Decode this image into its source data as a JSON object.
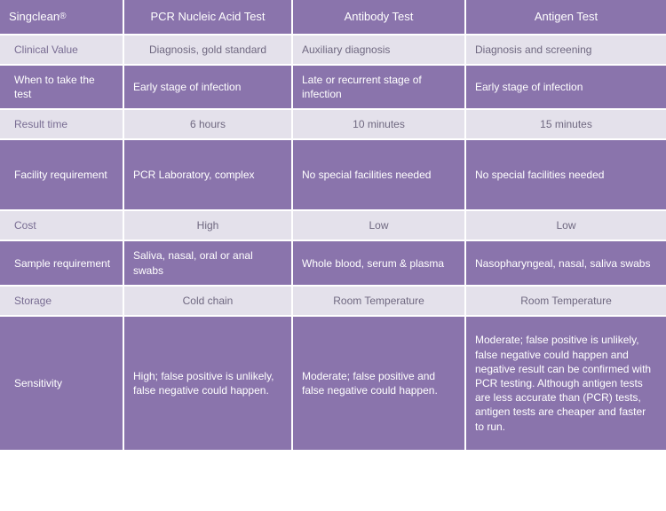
{
  "brand": {
    "name": "Singclean",
    "reg": "®"
  },
  "headers": {
    "col1": "PCR Nucleic Acid Test",
    "col2": "Antibody Test",
    "col3": "Antigen Test"
  },
  "rows": {
    "clinical_value": {
      "label": "Clinical Value",
      "c1": "Diagnosis, gold standard",
      "c2": "Auxiliary diagnosis",
      "c3": "Diagnosis and screening"
    },
    "when": {
      "label": "When to take the test",
      "c1": "Early stage of infection",
      "c2": "Late or recurrent stage of infection",
      "c3": "Early stage of infection"
    },
    "result_time": {
      "label": "Result time",
      "c1": "6 hours",
      "c2": "10 minutes",
      "c3": "15 minutes"
    },
    "facility": {
      "label": "Facility requirement",
      "c1": "PCR Laboratory, complex",
      "c2": "No special facilities needed",
      "c3": "No special facilities needed"
    },
    "cost": {
      "label": "Cost",
      "c1": "High",
      "c2": "Low",
      "c3": "Low"
    },
    "sample": {
      "label": "Sample requirement",
      "c1": "Saliva, nasal, oral or anal swabs",
      "c2": "Whole blood, serum & plasma",
      "c3": "Nasopharyngeal, nasal, saliva swabs"
    },
    "storage": {
      "label": "Storage",
      "c1": "Cold chain",
      "c2": "Room Temperature",
      "c3": "Room Temperature"
    },
    "sensitivity": {
      "label": "Sensitivity",
      "c1": "High; false positive is unlikely, false negative could happen.",
      "c2": "Moderate; false positive and false negative could happen.",
      "c3": "Moderate; false positive is unlikely, false negative could happen and negative result can be confirmed with PCR testing. Although antigen tests are less accurate than (PCR) tests, antigen tests are cheaper and faster to run."
    }
  },
  "colors": {
    "dark": "#8a74ac",
    "light": "#e4e1eb",
    "light_text": "#6f6880",
    "white": "#ffffff"
  }
}
